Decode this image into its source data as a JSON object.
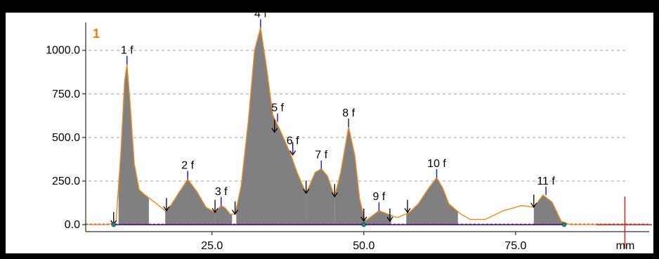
{
  "trace_label": "1",
  "colors": {
    "fill": "#808080",
    "curve": "#f08a1c",
    "baseline": "#1010e0",
    "marker": "#2020d0",
    "cursor": "#e02020",
    "grid": "#a0a0a0"
  },
  "chart_data": {
    "type": "area",
    "xlabel": "mm",
    "ylabel": "",
    "xlim": [
      4.2,
      97.0
    ],
    "ylim": [
      -40,
      1160
    ],
    "x_ticks": [
      25.0,
      50.0,
      75.0
    ],
    "x_tick_labels": [
      "25.0",
      "50.0",
      "75.0"
    ],
    "y_ticks": [
      0.0,
      250.0,
      500.0,
      750.0,
      1000.0
    ],
    "y_tick_labels": [
      "0.0",
      "250.0",
      "500.0",
      "750.0",
      "1000.0"
    ],
    "grid": "horizontal-dashed",
    "profile": [
      [
        4.2,
        0
      ],
      [
        8.0,
        0
      ],
      [
        9.2,
        20
      ],
      [
        10.0,
        420
      ],
      [
        10.6,
        820
      ],
      [
        11.0,
        920
      ],
      [
        11.5,
        700
      ],
      [
        12.2,
        350
      ],
      [
        13.0,
        200
      ],
      [
        14.0,
        170
      ],
      [
        15.5,
        130
      ],
      [
        17.3,
        80
      ],
      [
        18.2,
        110
      ],
      [
        19.5,
        180
      ],
      [
        21.0,
        260
      ],
      [
        22.5,
        190
      ],
      [
        24.0,
        100
      ],
      [
        25.5,
        70
      ],
      [
        26.5,
        110
      ],
      [
        27.2,
        95
      ],
      [
        28.0,
        60
      ],
      [
        28.8,
        60
      ],
      [
        29.8,
        220
      ],
      [
        31.0,
        600
      ],
      [
        32.0,
        1000
      ],
      [
        33.0,
        1130
      ],
      [
        34.0,
        900
      ],
      [
        35.0,
        630
      ],
      [
        36.5,
        520
      ],
      [
        38.0,
        400
      ],
      [
        39.0,
        300
      ],
      [
        40.5,
        180
      ],
      [
        42.0,
        300
      ],
      [
        43.0,
        320
      ],
      [
        44.0,
        280
      ],
      [
        45.2,
        160
      ],
      [
        46.2,
        300
      ],
      [
        47.5,
        560
      ],
      [
        48.5,
        400
      ],
      [
        49.3,
        150
      ],
      [
        50.2,
        20
      ],
      [
        51.0,
        40
      ],
      [
        52.5,
        80
      ],
      [
        54.0,
        60
      ],
      [
        55.5,
        40
      ],
      [
        57.5,
        70
      ],
      [
        59.0,
        120
      ],
      [
        60.5,
        200
      ],
      [
        62.0,
        270
      ],
      [
        63.0,
        210
      ],
      [
        64.0,
        120
      ],
      [
        66.0,
        60
      ],
      [
        67.5,
        30
      ],
      [
        70.0,
        30
      ],
      [
        73.0,
        80
      ],
      [
        76.0,
        110
      ],
      [
        78.0,
        100
      ],
      [
        79.5,
        170
      ],
      [
        81.0,
        130
      ],
      [
        82.5,
        20
      ],
      [
        84.0,
        0
      ],
      [
        97.0,
        0
      ]
    ],
    "shaded_regions": [
      [
        9.6,
        14.6
      ],
      [
        17.3,
        25.6
      ],
      [
        25.6,
        28.3
      ],
      [
        29.0,
        40.6
      ],
      [
        40.6,
        45.2
      ],
      [
        45.2,
        50.0
      ],
      [
        50.0,
        54.5
      ],
      [
        57.0,
        65.5
      ],
      [
        78.0,
        82.8
      ]
    ],
    "peaks": [
      {
        "label": "1 f",
        "x": 11.0,
        "y": 920
      },
      {
        "label": "2 f",
        "x": 21.0,
        "y": 260
      },
      {
        "label": "3 f",
        "x": 26.5,
        "y": 110
      },
      {
        "label": "4 f",
        "x": 33.0,
        "y": 1130
      },
      {
        "label": "5 f",
        "x": 35.8,
        "y": 590
      },
      {
        "label": "6 f",
        "x": 38.3,
        "y": 400
      },
      {
        "label": "7 f",
        "x": 43.0,
        "y": 320
      },
      {
        "label": "8 f",
        "x": 47.5,
        "y": 560
      },
      {
        "label": "9 f",
        "x": 52.5,
        "y": 80
      },
      {
        "label": "10 f",
        "x": 62.0,
        "y": 270
      },
      {
        "label": "11 f",
        "x": 80.0,
        "y": 170
      }
    ],
    "valley_markers": [
      {
        "x": 8.8,
        "y": 0
      },
      {
        "x": 17.5,
        "y": 80
      },
      {
        "x": 25.5,
        "y": 70
      },
      {
        "x": 28.8,
        "y": 60
      },
      {
        "x": 35.3,
        "y": 530
      },
      {
        "x": 38.3,
        "y": 400
      },
      {
        "x": 40.5,
        "y": 180
      },
      {
        "x": 45.2,
        "y": 160
      },
      {
        "x": 50.0,
        "y": 20
      },
      {
        "x": 54.3,
        "y": 20
      },
      {
        "x": 57.2,
        "y": 70
      },
      {
        "x": 78.0,
        "y": 100
      }
    ],
    "baseline_dots": [
      {
        "x": 8.8,
        "y": 0
      },
      {
        "x": 50.0,
        "y": 0
      },
      {
        "x": 83.0,
        "y": 0
      }
    ],
    "cursor_x": 93.0
  }
}
